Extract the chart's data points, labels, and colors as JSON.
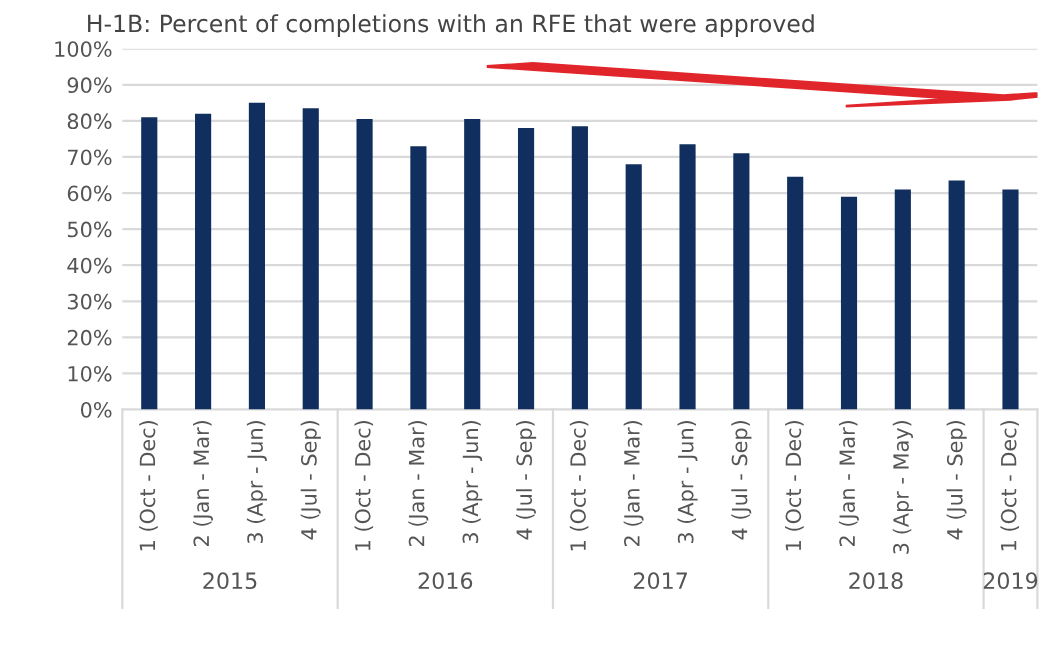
{
  "chart_data": {
    "type": "bar",
    "title": "H-1B: Percent of completions with an RFE that were approved",
    "categories": [
      "1 (Oct - Dec)",
      "2 (Jan - Mar)",
      "3 (Apr - Jun)",
      "4 (Jul - Sep)",
      "1 (Oct - Dec)",
      "2 (Jan - Mar)",
      "3 (Apr - Jun)",
      "4 (Jul - Sep)",
      "1 (Oct - Dec)",
      "2 (Jan - Mar)",
      "3 (Apr - Jun)",
      "4 (Jul - Sep)",
      "1 (Oct - Dec)",
      "2 (Jan - Mar)",
      "3 (Apr - May)",
      "4 (Jul - Sep)",
      "1 (Oct - Dec)"
    ],
    "values": [
      81,
      82,
      85,
      83.5,
      80.5,
      73,
      80.5,
      78,
      78.5,
      68,
      73.5,
      71,
      64.5,
      59,
      61,
      63.5,
      61
    ],
    "color": "#102f5e",
    "ylim": [
      0,
      100
    ],
    "yticks": [
      {
        "value": 0,
        "label": "0%"
      },
      {
        "value": 10,
        "label": "10%"
      },
      {
        "value": 20,
        "label": "20%"
      },
      {
        "value": 30,
        "label": "30%"
      },
      {
        "value": 40,
        "label": "40%"
      },
      {
        "value": 50,
        "label": "50%"
      },
      {
        "value": 60,
        "label": "60%"
      },
      {
        "value": 70,
        "label": "70%"
      },
      {
        "value": 80,
        "label": "80%"
      },
      {
        "value": 90,
        "label": "90%"
      },
      {
        "value": 100,
        "label": "100%"
      }
    ],
    "grid": "y",
    "annotations": [
      "2015",
      "2016",
      "2017",
      "2018",
      "2019"
    ]
  }
}
